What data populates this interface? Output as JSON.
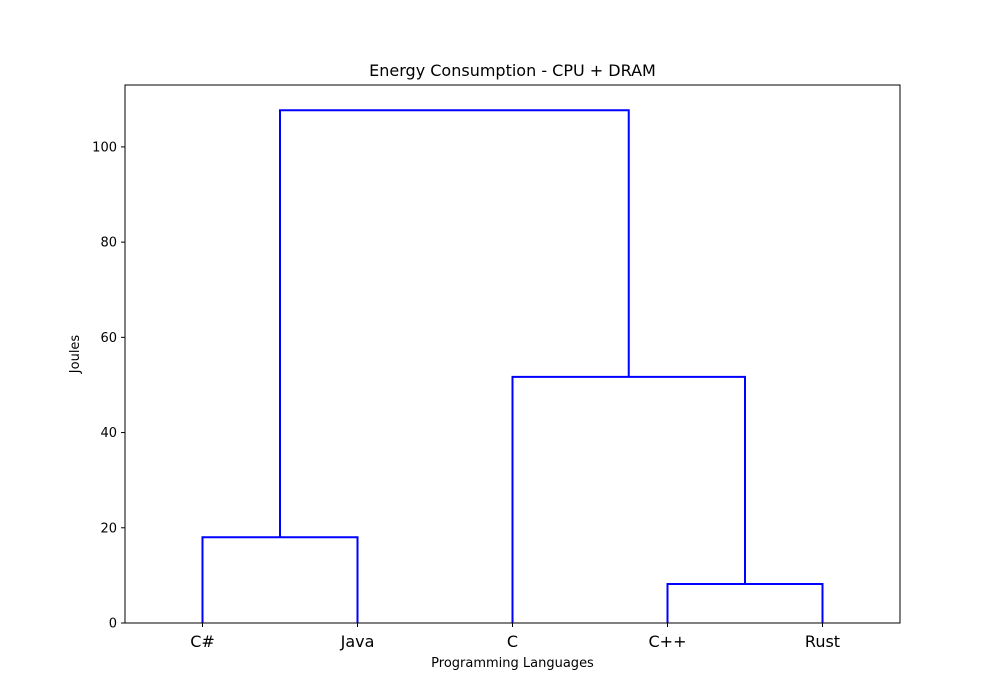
{
  "chart_data": {
    "type": "dendrogram",
    "title": "Energy Consumption - CPU + DRAM",
    "xlabel": "Programming Languages",
    "ylabel": "Joules",
    "leaves": [
      "C#",
      "Java",
      "C",
      "C++",
      "Rust"
    ],
    "ylim": [
      0,
      113
    ],
    "yticks": [
      0,
      20,
      40,
      60,
      80,
      100
    ],
    "line_color": "#0000ff",
    "grid": false,
    "merges": [
      {
        "left": "C#",
        "right": "Java",
        "height": 18
      },
      {
        "left": "C++",
        "right": "Rust",
        "height": 8.2
      },
      {
        "left": "C",
        "right": "C++ + Rust",
        "height": 51.7
      },
      {
        "left": "C# + Java",
        "right": "C + C++ + Rust",
        "height": 107.7
      }
    ]
  }
}
